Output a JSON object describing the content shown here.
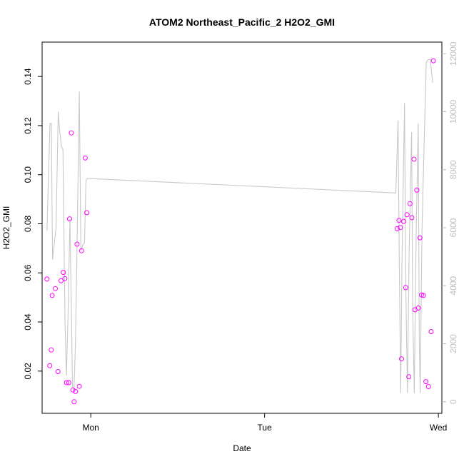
{
  "chart_data": {
    "type": "scatter",
    "title": "ATOM2 Northeast_Pacific_2 H2O2_GMI",
    "xlabel": "Date",
    "ylabel": "H2O2_GMI",
    "x_unit": "days since Mon 00:00 (Mon=0, Tue=1, Wed=2)",
    "xlim": [
      -0.28,
      2.02
    ],
    "x_ticks": [
      {
        "value": 0,
        "label": "Mon"
      },
      {
        "value": 1,
        "label": "Tue"
      },
      {
        "value": 2,
        "label": "Wed"
      }
    ],
    "ylim": [
      0.0028,
      0.154
    ],
    "y_ticks": [
      {
        "value": 0.02,
        "label": "0.02"
      },
      {
        "value": 0.04,
        "label": "0.04"
      },
      {
        "value": 0.06,
        "label": "0.06"
      },
      {
        "value": 0.08,
        "label": "0.08"
      },
      {
        "value": 0.1,
        "label": "0.10"
      },
      {
        "value": 0.12,
        "label": "0.12"
      },
      {
        "value": 0.14,
        "label": "0.14"
      }
    ],
    "y2lim": [
      -400,
      12400
    ],
    "y2_ticks": [
      {
        "value": 0,
        "label": "0"
      },
      {
        "value": 2000,
        "label": "2000"
      },
      {
        "value": 4000,
        "label": "4000"
      },
      {
        "value": 6000,
        "label": "6000"
      },
      {
        "value": 8000,
        "label": "8000"
      },
      {
        "value": 10000,
        "label": "10000"
      },
      {
        "value": 12000,
        "label": "12000"
      }
    ],
    "grid": false,
    "colors": {
      "points": "#ff00ff",
      "line": "#c8c8c8",
      "axis": "#000000",
      "axis2": "#bebebe"
    },
    "series": [
      {
        "values": [
          [
            -0.252,
            0.0575
          ],
          [
            -0.236,
            0.0222
          ],
          [
            -0.228,
            0.0286
          ],
          [
            -0.222,
            0.0508
          ],
          [
            -0.204,
            0.0536
          ],
          [
            -0.189,
            0.0198
          ],
          [
            -0.171,
            0.0568
          ],
          [
            -0.158,
            0.0602
          ],
          [
            -0.149,
            0.0577
          ],
          [
            -0.14,
            0.0153
          ],
          [
            -0.127,
            0.0153
          ],
          [
            -0.122,
            0.082
          ],
          [
            -0.112,
            0.117
          ],
          [
            -0.103,
            0.0123
          ],
          [
            -0.096,
            0.0075
          ],
          [
            -0.088,
            0.0117
          ],
          [
            -0.079,
            0.0717
          ],
          [
            -0.066,
            0.0138
          ],
          [
            -0.053,
            0.069
          ],
          [
            -0.032,
            0.1068
          ],
          [
            -0.023,
            0.0845
          ],
          [
            1.763,
            0.078
          ],
          [
            1.773,
            0.0814
          ],
          [
            1.781,
            0.0785
          ],
          [
            1.788,
            0.025
          ],
          [
            1.8,
            0.081
          ],
          [
            1.812,
            0.054
          ],
          [
            1.819,
            0.0837
          ],
          [
            1.83,
            0.0177
          ],
          [
            1.837,
            0.0882
          ],
          [
            1.847,
            0.0825
          ],
          [
            1.86,
            0.1063
          ],
          [
            1.865,
            0.045
          ],
          [
            1.876,
            0.0937
          ],
          [
            1.885,
            0.0457
          ],
          [
            1.894,
            0.0743
          ],
          [
            1.903,
            0.051
          ],
          [
            1.914,
            0.0508
          ],
          [
            1.928,
            0.0157
          ],
          [
            1.943,
            0.0137
          ],
          [
            1.958,
            0.0361
          ],
          [
            1.971,
            0.1464
          ]
        ]
      },
      {
        "axis": "right",
        "values": [
          [
            -0.252,
            5900
          ],
          [
            -0.235,
            9600
          ],
          [
            -0.227,
            9600
          ],
          [
            -0.22,
            4900
          ],
          [
            -0.2,
            6000
          ],
          [
            -0.187,
            10000
          ],
          [
            -0.18,
            9400
          ],
          [
            -0.169,
            8800
          ],
          [
            -0.16,
            8700
          ],
          [
            -0.148,
            2700
          ],
          [
            -0.14,
            900
          ],
          [
            -0.131,
            3000
          ],
          [
            -0.12,
            6300
          ],
          [
            -0.112,
            3300
          ],
          [
            -0.105,
            500
          ],
          [
            -0.097,
            400
          ],
          [
            -0.088,
            2000
          ],
          [
            -0.079,
            5300
          ],
          [
            -0.066,
            10700
          ],
          [
            -0.057,
            5200
          ],
          [
            -0.046,
            5400
          ],
          [
            -0.036,
            5500
          ],
          [
            -0.028,
            7600
          ],
          [
            -0.022,
            7700
          ],
          [
            1.755,
            7200
          ],
          [
            1.768,
            9700
          ],
          [
            1.775,
            4900
          ],
          [
            1.783,
            300
          ],
          [
            1.791,
            5000
          ],
          [
            1.805,
            10300
          ],
          [
            1.812,
            4000
          ],
          [
            1.822,
            300
          ],
          [
            1.831,
            5000
          ],
          [
            1.846,
            9300
          ],
          [
            1.852,
            3300
          ],
          [
            1.861,
            300
          ],
          [
            1.872,
            5800
          ],
          [
            1.884,
            9600
          ],
          [
            1.89,
            2300
          ],
          [
            1.895,
            300
          ],
          [
            1.906,
            6000
          ],
          [
            1.921,
            9600
          ],
          [
            1.93,
            11700
          ],
          [
            1.941,
            11800
          ],
          [
            1.953,
            11800
          ],
          [
            1.967,
            11000
          ]
        ]
      }
    ]
  }
}
